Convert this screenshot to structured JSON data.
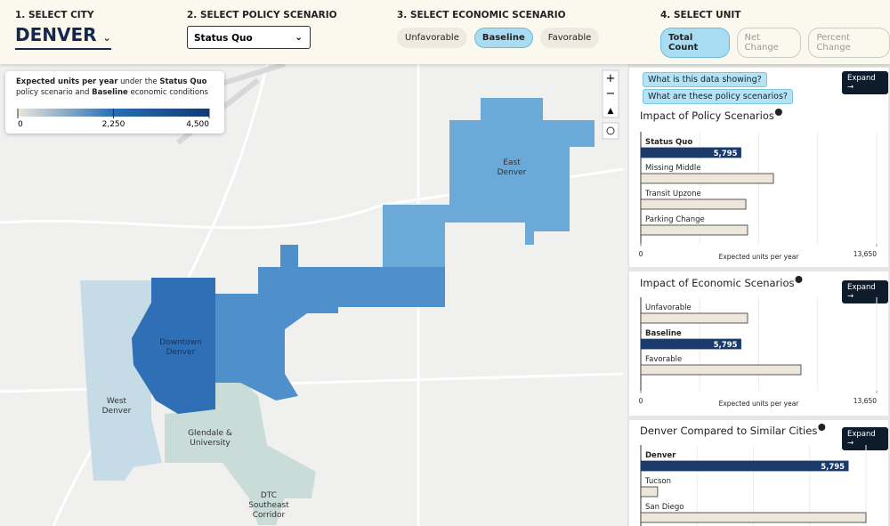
{
  "header": {
    "city_label": "1. SELECT CITY",
    "city": "DENVER",
    "policy_label": "2. SELECT POLICY SCENARIO",
    "policy": "Status Quo",
    "economic_label": "3. SELECT ECONOMIC SCENARIO",
    "economic_options": [
      "Unfavorable",
      "Baseline",
      "Favorable"
    ],
    "economic_selected": 1,
    "unit_label": "4. SELECT UNIT",
    "unit_options": [
      "Total Count",
      "Net Change",
      "Percent Change"
    ],
    "unit_selected": 0
  },
  "legend": {
    "text": [
      "Expected units per year",
      " under the ",
      "Status Quo",
      " policy scenario and ",
      "Baseline",
      " economic conditions"
    ],
    "range": [
      0,
      4500
    ],
    "ticks": [
      0,
      {
        "value": 2250,
        "label": "2,250"
      },
      {
        "value": 4500,
        "label": "4,500"
      }
    ],
    "colors": [
      "#ece6da",
      "#2a6db3",
      "#123a72"
    ]
  },
  "map_labels": [
    {
      "lines": [
        "East",
        "Denver"
      ]
    },
    {
      "lines": [
        "Downtown",
        "Denver"
      ]
    },
    {
      "lines": [
        "West",
        "Denver"
      ]
    },
    {
      "lines": [
        "Glendale &",
        "University"
      ]
    },
    {
      "lines": [
        "DTC",
        "Southeast",
        "Corridor"
      ]
    }
  ],
  "panel": {
    "links": [
      "What is this data showing?",
      "What are these policy scenarios?"
    ],
    "expand": "Expand →",
    "charts": [
      {
        "type": "bar",
        "title": "Impact of Policy Scenarios",
        "categories": [
          "Status Quo",
          "Missing Middle",
          "Transit Upzone",
          "Parking Change"
        ],
        "values": [
          5795,
          7675,
          6080,
          6180
        ],
        "value_labels": [
          "5,795",
          null,
          null,
          null
        ],
        "highlight": 0,
        "xlim": [
          0,
          13650
        ],
        "xticks": [
          0,
          {
            "value": 13650,
            "label": "13,650"
          }
        ],
        "xlabel": "Expected units per year"
      },
      {
        "type": "bar",
        "title": "Impact of Economic Scenarios",
        "categories": [
          "Unfavorable",
          "Baseline",
          "Favorable"
        ],
        "values": [
          6180,
          5795,
          9270
        ],
        "value_labels": [
          null,
          "5,795",
          null
        ],
        "highlight": 1,
        "xlim": [
          0,
          13650
        ],
        "xticks": [
          0,
          {
            "value": 13650,
            "label": "13,650"
          }
        ],
        "xlabel": "Expected units per year"
      },
      {
        "type": "bar",
        "title": "Denver Compared to Similar Cities",
        "categories": [
          "Denver",
          "Tucson",
          "San Diego"
        ],
        "values": [
          5795,
          470,
          6290
        ],
        "value_labels": [
          "5,795",
          null,
          null
        ],
        "highlight": 0
      }
    ]
  }
}
